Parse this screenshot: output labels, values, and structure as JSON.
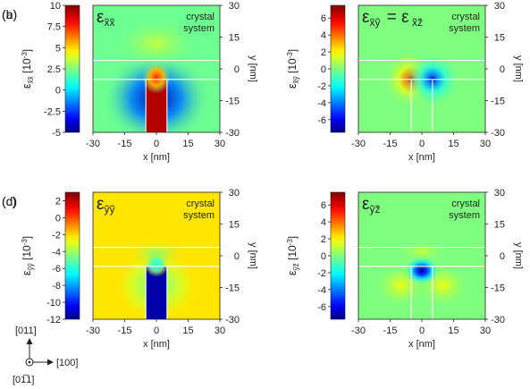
{
  "chart_data": [
    {
      "type": "heatmap",
      "panel_label": "(a)",
      "title_main": "ε",
      "title_sub": "x̃x̃",
      "annotation": [
        "crystal",
        "system"
      ],
      "colorbar": {
        "label_main": "ε",
        "label_sub": "x̃x̃",
        "label_unit": " [10",
        "label_exp": "-3",
        "label_close": "]",
        "range": [
          -5,
          10
        ],
        "ticks": [
          -5,
          -2.5,
          0,
          2.5,
          5,
          7.5,
          10
        ]
      },
      "xlabel": "x [nm]",
      "ylabel": "y [nm]",
      "xlim": [
        -30,
        30
      ],
      "ylim": [
        -30,
        30
      ],
      "xticks": [
        -30,
        -15,
        0,
        15,
        30
      ],
      "yticks": [
        -30,
        -15,
        0,
        15,
        30
      ],
      "layer_lines_y": [
        4,
        -5
      ],
      "wire_x": [
        -5,
        5
      ],
      "field": {
        "background": 2.2,
        "inside_wire": 9.2,
        "substrate_lobe": -4.5,
        "top_cap_peak": 7.5,
        "upper_lobe": 3.5
      }
    },
    {
      "type": "heatmap",
      "panel_label": "(b)",
      "title_main": "ε",
      "title_sub": "x̃ỹ",
      "title_eq": "= ε",
      "title_sub2": "x̃z̃",
      "annotation": [
        "crystal",
        "system"
      ],
      "colorbar": {
        "label_main": "ε",
        "label_sub": "x̃ỹ",
        "label_unit": " [10",
        "label_exp": "-3",
        "label_close": "]",
        "range": [
          -7.5,
          7.5
        ],
        "ticks": [
          -6,
          -4,
          -2,
          0,
          2,
          4,
          6
        ]
      },
      "xlabel": "x [nm]",
      "ylabel": "y [nm]",
      "xlim": [
        -30,
        30
      ],
      "ylim": [
        -30,
        30
      ],
      "xticks": [
        -30,
        -15,
        0,
        15,
        30
      ],
      "yticks": [
        -30,
        -15,
        0,
        15,
        30
      ],
      "layer_lines_y": [
        4,
        -5
      ],
      "wire_x": [
        -5,
        5
      ],
      "field": {
        "background": 0,
        "positive_peak": 7.5,
        "negative_peak": -7.5,
        "peak_x": [
          -5,
          5
        ],
        "peak_y": -5
      }
    },
    {
      "type": "heatmap",
      "panel_label": "(c)",
      "title_main": "ε",
      "title_sub": "ỹỹ",
      "annotation": [
        "crystal",
        "system"
      ],
      "colorbar": {
        "label_main": "ε",
        "label_sub": "ỹỹ",
        "label_unit": " [10",
        "label_exp": "-3",
        "label_close": "]",
        "range": [
          -12,
          3
        ],
        "ticks": [
          -12,
          -10,
          -8,
          -6,
          -4,
          -2,
          0,
          2
        ]
      },
      "xlabel": "x [nm]",
      "ylabel": "y [nm]",
      "xlim": [
        -30,
        30
      ],
      "ylim": [
        -30,
        30
      ],
      "xticks": [
        -30,
        -15,
        0,
        15,
        30
      ],
      "yticks": [
        -30,
        -15,
        0,
        15,
        30
      ],
      "layer_lines_y": [
        4,
        -5
      ],
      "wire_x": [
        -5,
        5
      ],
      "field": {
        "background": -2.2,
        "inside_wire": -11.5,
        "cap_peak": -6
      }
    },
    {
      "type": "heatmap",
      "panel_label": "(d)",
      "title_main": "ε",
      "title_sub": "ỹz̃",
      "annotation": [
        "crystal",
        "system"
      ],
      "colorbar": {
        "label_main": "ε",
        "label_sub": "ỹz̃",
        "label_unit": " [10",
        "label_exp": "-3",
        "label_close": "]",
        "range": [
          -7.5,
          7.5
        ],
        "ticks": [
          -6,
          -4,
          -2,
          0,
          2,
          4,
          6
        ]
      },
      "xlabel": "x [nm]",
      "ylabel": "y [nm]",
      "xlim": [
        -30,
        30
      ],
      "ylim": [
        -30,
        30
      ],
      "xticks": [
        -30,
        -15,
        0,
        15,
        30
      ],
      "yticks": [
        -30,
        -15,
        0,
        15,
        30
      ],
      "layer_lines_y": [
        4,
        -5
      ],
      "wire_x": [
        -5,
        5
      ],
      "field": {
        "background": 0,
        "negative_peak": -7.5,
        "positive_lobes": 1.8
      }
    }
  ],
  "axes_legend": {
    "up": "[011]",
    "right": "[100]",
    "out": "[01̅1]"
  }
}
